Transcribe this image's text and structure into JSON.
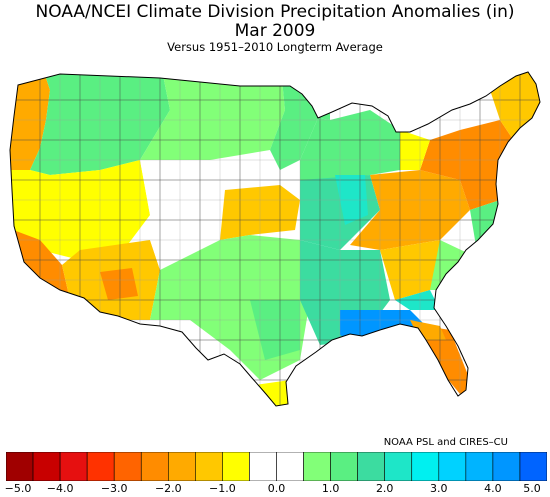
{
  "title": "NOAA/NCEI Climate Division Precipitation Anomalies (in)",
  "period": "Mar 2009",
  "subtitle": "Versus 1951–2010 Longterm Average",
  "credit": "NOAA PSL and CIRES–CU",
  "legend": {
    "unit": "in",
    "ticks": [
      "−5.0",
      "−4.0",
      "−3.0",
      "−2.0",
      "−1.0",
      "0.0",
      "1.0",
      "2.0",
      "3.0",
      "4.0",
      "5.0"
    ],
    "bins": [
      {
        "range": [
          -5.0,
          -4.5
        ],
        "color": "#a00000"
      },
      {
        "range": [
          -4.5,
          -4.0
        ],
        "color": "#c80000"
      },
      {
        "range": [
          -4.0,
          -3.5
        ],
        "color": "#e61010"
      },
      {
        "range": [
          -3.5,
          -3.0
        ],
        "color": "#ff3200"
      },
      {
        "range": [
          -3.0,
          -2.5
        ],
        "color": "#ff6400"
      },
      {
        "range": [
          -2.5,
          -2.0
        ],
        "color": "#ff8c00"
      },
      {
        "range": [
          -2.0,
          -1.5
        ],
        "color": "#ffaa00"
      },
      {
        "range": [
          -1.5,
          -1.0
        ],
        "color": "#ffc800"
      },
      {
        "range": [
          -1.0,
          -0.5
        ],
        "color": "#ffff00"
      },
      {
        "range": [
          -0.5,
          0.0
        ],
        "color": "#ffffff"
      },
      {
        "range": [
          0.0,
          0.5
        ],
        "color": "#ffffff"
      },
      {
        "range": [
          0.5,
          1.0
        ],
        "color": "#82ff78"
      },
      {
        "range": [
          1.0,
          1.5
        ],
        "color": "#5aef82"
      },
      {
        "range": [
          1.5,
          2.0
        ],
        "color": "#3cdca0"
      },
      {
        "range": [
          2.0,
          2.5
        ],
        "color": "#1ee6c8"
      },
      {
        "range": [
          2.5,
          3.0
        ],
        "color": "#00f0f0"
      },
      {
        "range": [
          3.0,
          3.5
        ],
        "color": "#00d2ff"
      },
      {
        "range": [
          3.5,
          4.0
        ],
        "color": "#00b4ff"
      },
      {
        "range": [
          4.0,
          4.5
        ],
        "color": "#0096ff"
      },
      {
        "range": [
          4.5,
          5.0
        ],
        "color": "#0064ff"
      }
    ]
  },
  "regions": [
    {
      "name": "Pacific Northwest coast",
      "anomaly": -1.5
    },
    {
      "name": "Interior Northwest",
      "anomaly": 1.0
    },
    {
      "name": "Northern Rockies / High Plains",
      "anomaly": 0.8
    },
    {
      "name": "Northern Plains",
      "anomaly": 1.0
    },
    {
      "name": "Northern California / Great Basin",
      "anomaly": -0.8
    },
    {
      "name": "Central & Southern California",
      "anomaly": -2.0
    },
    {
      "name": "Southwest (Arizona)",
      "anomaly": -1.2
    },
    {
      "name": "Central Plains (Kansas)",
      "anomaly": -1.5
    },
    {
      "name": "Upper Midwest",
      "anomaly": 1.0
    },
    {
      "name": "Mid-Mississippi Valley",
      "anomaly": 2.0
    },
    {
      "name": "Ohio Valley",
      "anomaly": -1.5
    },
    {
      "name": "Mid-Atlantic",
      "anomaly": -2.0
    },
    {
      "name": "New England",
      "anomaly": -1.0
    },
    {
      "name": "Southern Plains / Texas",
      "anomaly": 1.0
    },
    {
      "name": "Lower Mississippi Valley",
      "anomaly": 2.5
    },
    {
      "name": "Gulf Coast (MS/AL)",
      "anomaly": 4.2
    },
    {
      "name": "Georgia / Carolinas",
      "anomaly": 2.0
    },
    {
      "name": "Florida peninsula",
      "anomaly": -2.0
    },
    {
      "name": "Far South Texas",
      "anomaly": -0.8
    }
  ]
}
